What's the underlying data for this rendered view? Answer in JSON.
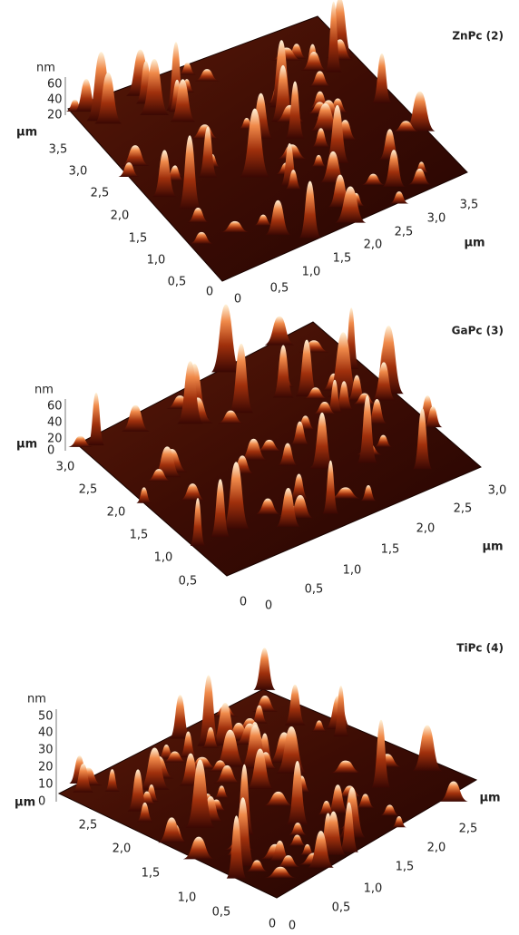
{
  "panels": [
    {
      "title": "ZnPc (2)",
      "z_unit": "nm",
      "z_ticks": [
        "60",
        "40",
        "20"
      ],
      "xy_unit": "µm",
      "left_ticks": [
        "3,5",
        "3,0",
        "2,5",
        "2,0",
        "1,5",
        "1,0",
        "0,5",
        "0"
      ],
      "right_ticks": [
        "0",
        "0,5",
        "1,0",
        "1,5",
        "2,0",
        "2,5",
        "3,0",
        "3,5"
      ],
      "right_unit": "µm"
    },
    {
      "title": "GaPc (3)",
      "z_unit": "nm",
      "z_ticks": [
        "60",
        "40",
        "20",
        "0"
      ],
      "xy_unit": "µm",
      "left_ticks": [
        "3,0",
        "2,5",
        "2,0",
        "1,5",
        "1,0",
        "0,5",
        "0"
      ],
      "right_ticks": [
        "0",
        "0,5",
        "1,0",
        "1,5",
        "2,0",
        "2,5",
        "3,0"
      ],
      "right_unit": "µm"
    },
    {
      "title": "TiPc (4)",
      "z_unit": "nm",
      "z_ticks": [
        "50",
        "40",
        "30",
        "20",
        "10",
        "0"
      ],
      "xy_unit": "µm",
      "left_ticks": [
        "2,5",
        "2,0",
        "1,5",
        "1,0",
        "0,5",
        "0"
      ],
      "right_ticks": [
        "0",
        "0,5",
        "1,0",
        "1,5",
        "2,0",
        "2,5"
      ],
      "right_unit": "µm"
    }
  ]
}
